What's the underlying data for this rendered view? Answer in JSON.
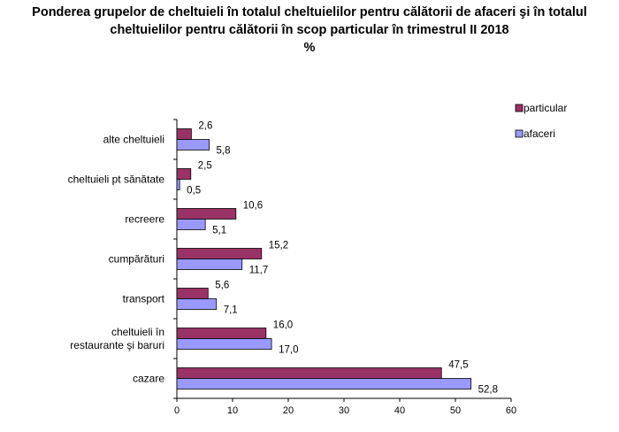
{
  "chart_data": {
    "type": "bar",
    "orientation": "horizontal",
    "title_lines": [
      "Ponderea grupelor de cheltuieli în totalul cheltuielilor pentru călătorii de afaceri şi în totalul",
      "cheltuielilor pentru călătorii în scop particular în trimestrul II  2018",
      "%"
    ],
    "categories": [
      "alte cheltuieli",
      "cheltuieli pt sănătate",
      "recreere",
      "cumpărături",
      "transport",
      "cheltuieli în restaurante şi baruri",
      "cazare"
    ],
    "category_lines": [
      [
        "alte cheltuieli"
      ],
      [
        "cheltuieli pt sănătate"
      ],
      [
        "recreere"
      ],
      [
        "cumpărături"
      ],
      [
        "transport"
      ],
      [
        "cheltuieli în",
        "restaurante şi baruri"
      ],
      [
        "cazare"
      ]
    ],
    "series": [
      {
        "name": "particular",
        "color": "#993366",
        "values": [
          2.6,
          2.5,
          10.6,
          15.2,
          5.6,
          16.0,
          47.5
        ],
        "labels": [
          "2,6",
          "2,5",
          "10,6",
          "15,2",
          "5,6",
          "16,0",
          "47,5"
        ]
      },
      {
        "name": "afaceri",
        "color": "#9999FF",
        "values": [
          5.8,
          0.5,
          5.1,
          11.7,
          7.1,
          17.0,
          52.8
        ],
        "labels": [
          "5,8",
          "0,5",
          "5,1",
          "11,7",
          "7,1",
          "17,0",
          "52,8"
        ]
      }
    ],
    "xlim": [
      0,
      60
    ],
    "xticks": [
      "0",
      "10",
      "20",
      "30",
      "40",
      "50",
      "60"
    ],
    "grid": false,
    "legend_position": "top-right"
  }
}
